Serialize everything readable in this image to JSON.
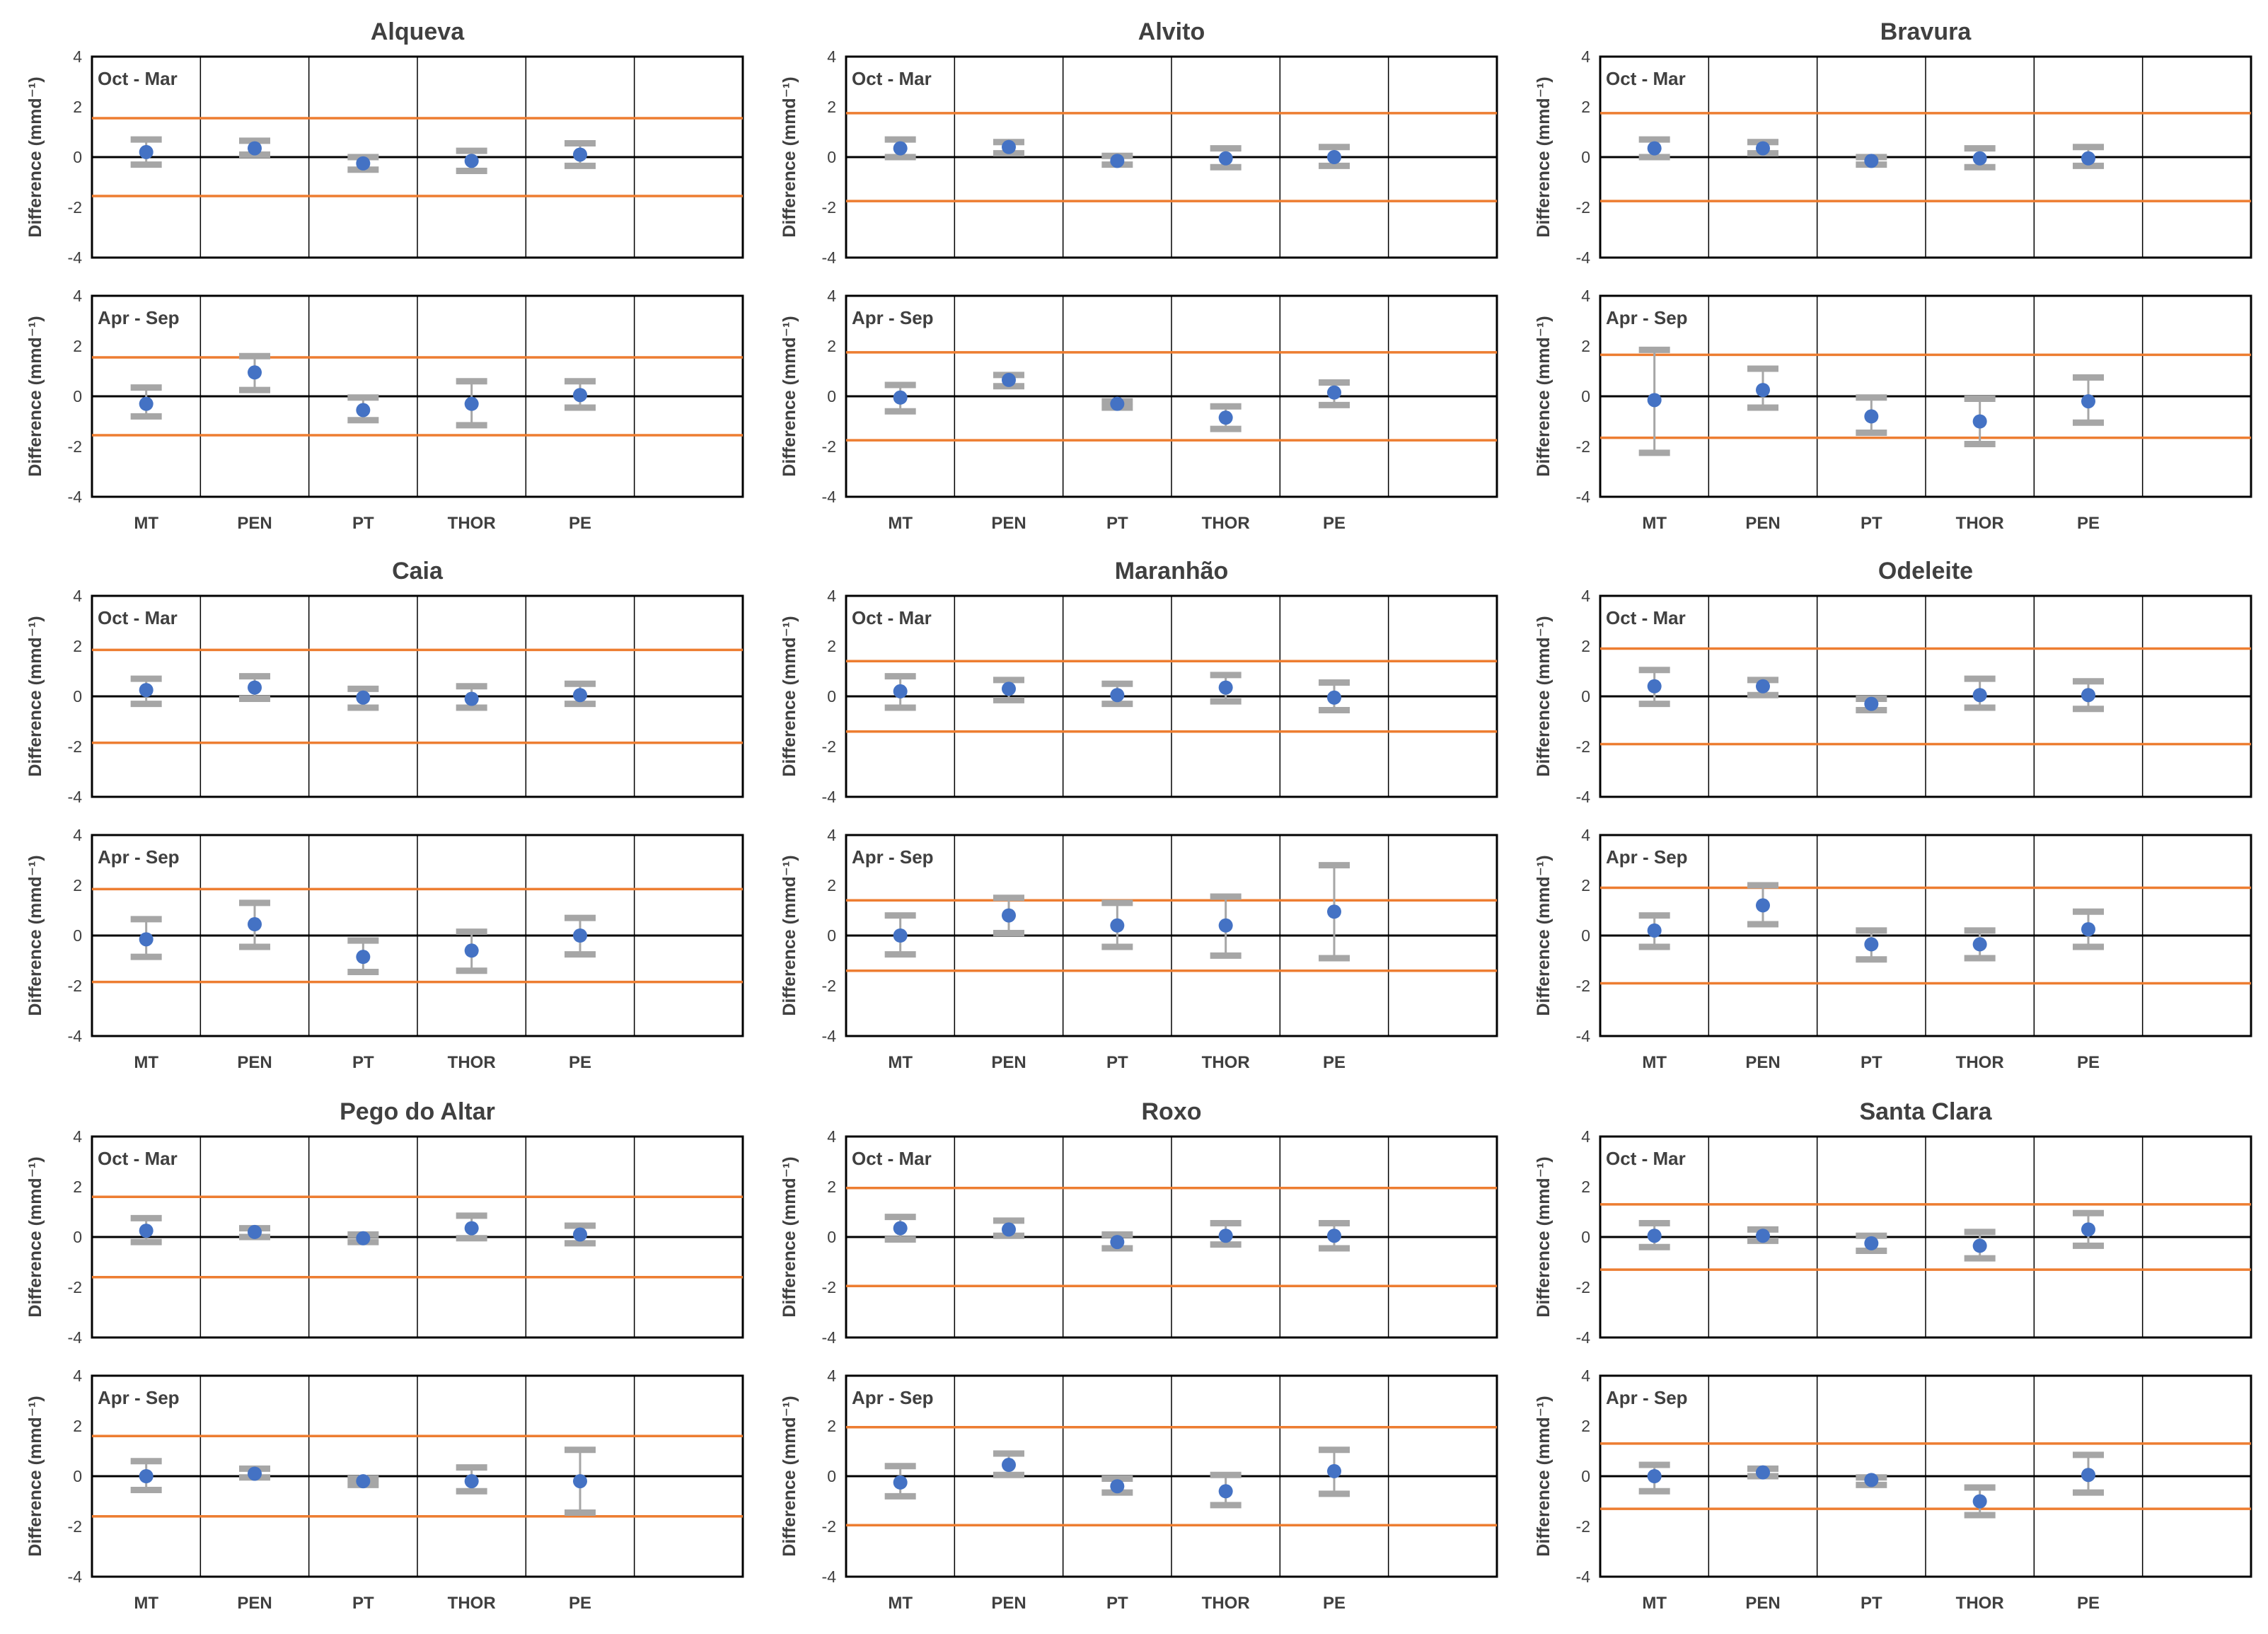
{
  "colors": {
    "point": "#4472C4",
    "error_bar": "#A6A6A6",
    "threshold": "#ED7D31",
    "frame": "#000000",
    "text": "#404040"
  },
  "labels": {
    "y_axis": "Difference (mmd⁻¹)"
  },
  "chart_data": [
    {
      "type": "scatter",
      "title": "Alqueva",
      "categories": [
        "MT",
        "PEN",
        "PT",
        "THOR",
        "PE"
      ],
      "ylim": [
        -4,
        4
      ],
      "yticks": [
        -4,
        -2,
        0,
        2,
        4
      ],
      "panels": [
        {
          "season": "Oct - Mar",
          "threshold": 1.55,
          "points": [
            0.2,
            0.35,
            -0.25,
            -0.15,
            0.1
          ],
          "upper": [
            0.7,
            0.65,
            0.0,
            0.25,
            0.55
          ],
          "lower": [
            -0.3,
            0.1,
            -0.5,
            -0.55,
            -0.35
          ]
        },
        {
          "season": "Apr - Sep",
          "threshold": 1.55,
          "points": [
            -0.3,
            0.95,
            -0.55,
            -0.3,
            0.05
          ],
          "upper": [
            0.35,
            1.6,
            -0.05,
            0.6,
            0.6
          ],
          "lower": [
            -0.8,
            0.25,
            -0.95,
            -1.15,
            -0.45
          ]
        }
      ]
    },
    {
      "type": "scatter",
      "title": "Alvito",
      "categories": [
        "MT",
        "PEN",
        "PT",
        "THOR",
        "PE"
      ],
      "ylim": [
        -4,
        4
      ],
      "yticks": [
        -4,
        -2,
        0,
        2,
        4
      ],
      "panels": [
        {
          "season": "Oct - Mar",
          "threshold": 1.75,
          "points": [
            0.35,
            0.4,
            -0.15,
            -0.05,
            0.0
          ],
          "upper": [
            0.7,
            0.6,
            0.05,
            0.35,
            0.4
          ],
          "lower": [
            0.0,
            0.15,
            -0.3,
            -0.4,
            -0.35
          ]
        },
        {
          "season": "Apr - Sep",
          "threshold": 1.75,
          "points": [
            -0.05,
            0.65,
            -0.3,
            -0.85,
            0.15
          ],
          "upper": [
            0.45,
            0.85,
            -0.2,
            -0.4,
            0.55
          ],
          "lower": [
            -0.6,
            0.4,
            -0.45,
            -1.3,
            -0.35
          ]
        }
      ]
    },
    {
      "type": "scatter",
      "title": "Bravura",
      "categories": [
        "MT",
        "PEN",
        "PT",
        "THOR",
        "PE"
      ],
      "ylim": [
        -4,
        4
      ],
      "yticks": [
        -4,
        -2,
        0,
        2,
        4
      ],
      "panels": [
        {
          "season": "Oct - Mar",
          "threshold": 1.75,
          "points": [
            0.35,
            0.35,
            -0.15,
            -0.05,
            -0.05
          ],
          "upper": [
            0.7,
            0.6,
            0.0,
            0.35,
            0.4
          ],
          "lower": [
            0.0,
            0.15,
            -0.3,
            -0.4,
            -0.35
          ]
        },
        {
          "season": "Apr - Sep",
          "threshold": 1.65,
          "points": [
            -0.15,
            0.25,
            -0.8,
            -1.0,
            -0.2
          ],
          "upper": [
            1.85,
            1.1,
            -0.05,
            -0.1,
            0.75
          ],
          "lower": [
            -2.25,
            -0.45,
            -1.45,
            -1.9,
            -1.05
          ]
        }
      ]
    },
    {
      "type": "scatter",
      "title": "Caia",
      "categories": [
        "MT",
        "PEN",
        "PT",
        "THOR",
        "PE"
      ],
      "ylim": [
        -4,
        4
      ],
      "yticks": [
        -4,
        -2,
        0,
        2,
        4
      ],
      "panels": [
        {
          "season": "Oct - Mar",
          "threshold": 1.85,
          "points": [
            0.25,
            0.35,
            -0.05,
            -0.1,
            0.05
          ],
          "upper": [
            0.7,
            0.8,
            0.3,
            0.4,
            0.5
          ],
          "lower": [
            -0.3,
            -0.1,
            -0.45,
            -0.45,
            -0.3
          ]
        },
        {
          "season": "Apr - Sep",
          "threshold": 1.85,
          "points": [
            -0.15,
            0.45,
            -0.85,
            -0.6,
            0.0
          ],
          "upper": [
            0.65,
            1.3,
            -0.2,
            0.15,
            0.7
          ],
          "lower": [
            -0.85,
            -0.45,
            -1.45,
            -1.4,
            -0.75
          ]
        }
      ]
    },
    {
      "type": "scatter",
      "title": "Maranhão",
      "categories": [
        "MT",
        "PEN",
        "PT",
        "THOR",
        "PE"
      ],
      "ylim": [
        -4,
        4
      ],
      "yticks": [
        -4,
        -2,
        0,
        2,
        4
      ],
      "panels": [
        {
          "season": "Oct - Mar",
          "threshold": 1.4,
          "points": [
            0.2,
            0.3,
            0.05,
            0.35,
            -0.05
          ],
          "upper": [
            0.8,
            0.65,
            0.5,
            0.85,
            0.55
          ],
          "lower": [
            -0.45,
            -0.15,
            -0.3,
            -0.2,
            -0.55
          ]
        },
        {
          "season": "Apr - Sep",
          "threshold": 1.4,
          "points": [
            0.0,
            0.8,
            0.4,
            0.4,
            0.95
          ],
          "upper": [
            0.8,
            1.5,
            1.3,
            1.55,
            2.8
          ],
          "lower": [
            -0.75,
            0.1,
            -0.45,
            -0.8,
            -0.9
          ]
        }
      ]
    },
    {
      "type": "scatter",
      "title": "Odeleite",
      "categories": [
        "MT",
        "PEN",
        "PT",
        "THOR",
        "PE"
      ],
      "ylim": [
        -4,
        4
      ],
      "yticks": [
        -4,
        -2,
        0,
        2,
        4
      ],
      "panels": [
        {
          "season": "Oct - Mar",
          "threshold": 1.9,
          "points": [
            0.4,
            0.4,
            -0.3,
            0.05,
            0.05
          ],
          "upper": [
            1.05,
            0.65,
            -0.1,
            0.7,
            0.6
          ],
          "lower": [
            -0.3,
            0.05,
            -0.55,
            -0.45,
            -0.5
          ]
        },
        {
          "season": "Apr - Sep",
          "threshold": 1.9,
          "points": [
            0.2,
            1.2,
            -0.35,
            -0.35,
            0.25
          ],
          "upper": [
            0.8,
            2.0,
            0.2,
            0.2,
            0.95
          ],
          "lower": [
            -0.45,
            0.45,
            -0.95,
            -0.9,
            -0.45
          ]
        }
      ]
    },
    {
      "type": "scatter",
      "title": "Pego do Altar",
      "categories": [
        "MT",
        "PEN",
        "PT",
        "THOR",
        "PE"
      ],
      "ylim": [
        -4,
        4
      ],
      "yticks": [
        -4,
        -2,
        0,
        2,
        4
      ],
      "panels": [
        {
          "season": "Oct - Mar",
          "threshold": 1.6,
          "points": [
            0.25,
            0.2,
            -0.05,
            0.35,
            0.1
          ],
          "upper": [
            0.75,
            0.35,
            0.1,
            0.85,
            0.45
          ],
          "lower": [
            -0.2,
            0.0,
            -0.2,
            -0.05,
            -0.25
          ]
        },
        {
          "season": "Apr - Sep",
          "threshold": 1.6,
          "points": [
            0.0,
            0.1,
            -0.2,
            -0.2,
            -0.2
          ],
          "upper": [
            0.6,
            0.3,
            -0.1,
            0.35,
            1.05
          ],
          "lower": [
            -0.55,
            -0.05,
            -0.35,
            -0.6,
            -1.45
          ]
        }
      ]
    },
    {
      "type": "scatter",
      "title": "Roxo",
      "categories": [
        "MT",
        "PEN",
        "PT",
        "THOR",
        "PE"
      ],
      "ylim": [
        -4,
        4
      ],
      "yticks": [
        -4,
        -2,
        0,
        2,
        4
      ],
      "panels": [
        {
          "season": "Oct - Mar",
          "threshold": 1.95,
          "points": [
            0.35,
            0.3,
            -0.2,
            0.05,
            0.05
          ],
          "upper": [
            0.8,
            0.65,
            0.1,
            0.55,
            0.55
          ],
          "lower": [
            -0.1,
            0.05,
            -0.45,
            -0.3,
            -0.45
          ]
        },
        {
          "season": "Apr - Sep",
          "threshold": 1.95,
          "points": [
            -0.25,
            0.45,
            -0.4,
            -0.6,
            0.2
          ],
          "upper": [
            0.4,
            0.9,
            -0.1,
            0.05,
            1.05
          ],
          "lower": [
            -0.8,
            0.05,
            -0.65,
            -1.15,
            -0.7
          ]
        }
      ]
    },
    {
      "type": "scatter",
      "title": "Santa Clara",
      "categories": [
        "MT",
        "PEN",
        "PT",
        "THOR",
        "PE"
      ],
      "ylim": [
        -4,
        4
      ],
      "yticks": [
        -4,
        -2,
        0,
        2,
        4
      ],
      "panels": [
        {
          "season": "Oct - Mar",
          "threshold": 1.3,
          "points": [
            0.05,
            0.05,
            -0.25,
            -0.35,
            0.3
          ],
          "upper": [
            0.55,
            0.3,
            0.05,
            0.2,
            0.95
          ],
          "lower": [
            -0.4,
            -0.15,
            -0.55,
            -0.85,
            -0.35
          ]
        },
        {
          "season": "Apr - Sep",
          "threshold": 1.3,
          "points": [
            0.0,
            0.15,
            -0.15,
            -1.0,
            0.05
          ],
          "upper": [
            0.45,
            0.3,
            -0.05,
            -0.45,
            0.85
          ],
          "lower": [
            -0.6,
            0.0,
            -0.35,
            -1.55,
            -0.65
          ]
        }
      ]
    }
  ]
}
